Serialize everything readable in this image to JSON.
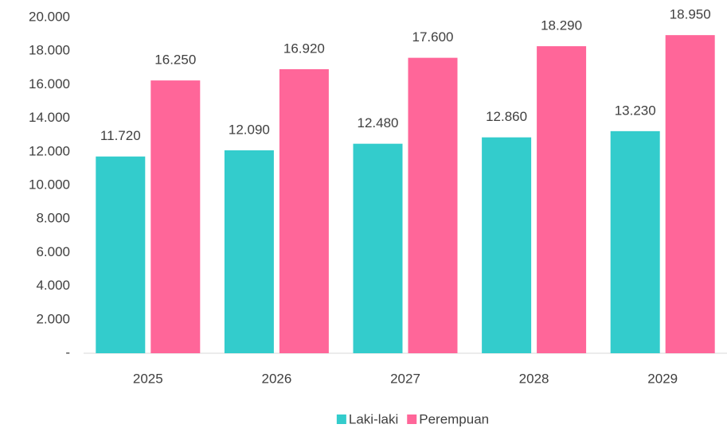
{
  "chart_data": {
    "type": "bar",
    "categories": [
      "2025",
      "2026",
      "2027",
      "2028",
      "2029"
    ],
    "series": [
      {
        "name": "Laki-laki",
        "color": "#33cccc",
        "values": [
          11720,
          12090,
          12480,
          12860,
          13230
        ],
        "value_labels": [
          "11.720",
          "12.090",
          "12.480",
          "12.860",
          "13.230"
        ]
      },
      {
        "name": "Perempuan",
        "color": "#ff6699",
        "values": [
          16250,
          16920,
          17600,
          18290,
          18950
        ],
        "value_labels": [
          "16.250",
          "16.920",
          "17.600",
          "18.290",
          "18.950"
        ]
      }
    ],
    "ylim": [
      0,
      20000
    ],
    "yticks": [
      {
        "value": 0,
        "label": "-"
      },
      {
        "value": 2000,
        "label": "2.000"
      },
      {
        "value": 4000,
        "label": "4.000"
      },
      {
        "value": 6000,
        "label": "6.000"
      },
      {
        "value": 8000,
        "label": "8.000"
      },
      {
        "value": 10000,
        "label": "10.000"
      },
      {
        "value": 12000,
        "label": "12.000"
      },
      {
        "value": 14000,
        "label": "14.000"
      },
      {
        "value": 16000,
        "label": "16.000"
      },
      {
        "value": 18000,
        "label": "18.000"
      },
      {
        "value": 20000,
        "label": "20.000"
      }
    ],
    "grid": false,
    "legend": "bottom"
  }
}
